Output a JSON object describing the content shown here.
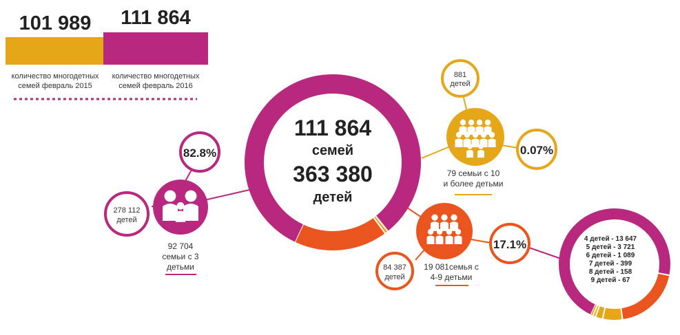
{
  "colors": {
    "magenta": "#b7287e",
    "gold": "#e5a718",
    "orange": "#e9541f",
    "text": "#222222"
  },
  "top_bars": {
    "bar_2015": {
      "value_label": "101 989",
      "caption_line1": "количество многодетных",
      "caption_line2": "семей февраль 2015",
      "color": "#e5a718"
    },
    "bar_2016": {
      "value_label": "111 864",
      "caption_line1": "количество многодетных",
      "caption_line2": "семей февраль 2016",
      "color": "#b7287e"
    }
  },
  "center": {
    "families_number": "111 864",
    "families_word": "семей",
    "children_number": "363 380",
    "children_word": "детей"
  },
  "group_3": {
    "percent": "82.8%",
    "children_line1": "278 112",
    "children_line2": "детей",
    "caption_line1": "92 704",
    "caption_line2": "семьи с 3",
    "caption_line3": "детьми",
    "icon": "family-icon"
  },
  "group_10": {
    "children_line1": "881",
    "children_line2": "детей",
    "percent": "0.07%",
    "caption_line1": "79 семьи с 10",
    "caption_line2": "и более детьми",
    "icon": "family-icon"
  },
  "group_4_9": {
    "children_line1": "84 387",
    "children_line2": "детей",
    "percent": "17.1%",
    "caption_line1": "19 081семья с",
    "caption_line2": "4-9 детьми",
    "icon": "family-icon"
  },
  "breakdown": [
    "4 детей - 13 647",
    "5 детей - 3 721",
    "6 детей - 1 089",
    "7 детей - 399",
    "8 детей - 158",
    "9 детей - 67"
  ],
  "chart_data": [
    {
      "type": "bar",
      "categories": [
        "количество многодетных семей февраль 2015",
        "количество многодетных семей февраль 2016"
      ],
      "values": [
        101989,
        111864
      ]
    },
    {
      "type": "pie",
      "categories": [
        "семьи с 3 детьми",
        "семьи с 4-9 детьми",
        "семьи с 10 и более детьми"
      ],
      "values": [
        92704,
        19081,
        79
      ],
      "percent_labels": [
        "82.8%",
        "17.1%",
        "0.07%"
      ]
    },
    {
      "type": "pie",
      "categories": [
        "4 детей",
        "5 детей",
        "6 детей",
        "7 детей",
        "8 детей",
        "9 детей"
      ],
      "values": [
        13647,
        3721,
        1089,
        399,
        158,
        67
      ]
    }
  ]
}
